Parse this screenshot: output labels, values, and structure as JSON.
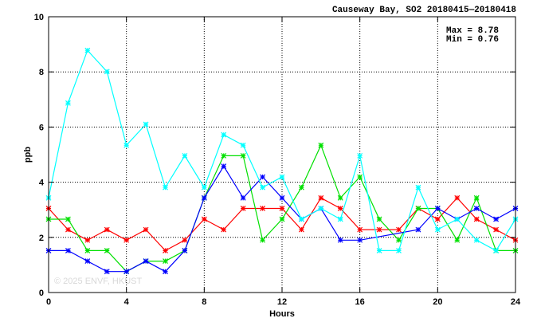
{
  "chart_data": {
    "type": "line",
    "title": "Causeway Bay, SO2 20180415—20180418",
    "xlabel": "Hours",
    "ylabel": "ppb",
    "xlim": [
      0,
      24
    ],
    "ylim": [
      0,
      10
    ],
    "x_ticks": [
      0,
      4,
      8,
      12,
      16,
      20,
      24
    ],
    "y_ticks": [
      0,
      2,
      4,
      6,
      8,
      10
    ],
    "x_tick_labels": [
      "0",
      "4",
      "8",
      "12",
      "16",
      "20",
      "24"
    ],
    "y_tick_labels": [
      "0",
      "2",
      "4",
      "6",
      "8",
      "10"
    ],
    "grid": true,
    "stats": {
      "max": "Max = 8.78",
      "min": "Min = 0.76"
    },
    "watermark": "© 2025  ENVF, HKUST",
    "x": [
      0,
      1,
      2,
      3,
      4,
      5,
      6,
      7,
      8,
      9,
      10,
      11,
      12,
      13,
      14,
      15,
      16,
      17,
      18,
      19,
      20,
      21,
      22,
      23,
      24
    ],
    "series": [
      {
        "color": "#ff0000",
        "values": [
          3.05,
          2.28,
          1.9,
          2.28,
          1.9,
          2.28,
          1.52,
          1.9,
          2.66,
          2.28,
          3.05,
          3.05,
          3.05,
          2.28,
          3.43,
          3.05,
          2.28,
          2.28,
          2.28,
          3.05,
          2.66,
          3.43,
          2.66,
          2.28,
          1.9
        ]
      },
      {
        "color": "#00e000",
        "values": [
          2.66,
          2.66,
          1.52,
          1.52,
          0.76,
          1.14,
          1.14,
          1.52,
          3.43,
          4.96,
          4.96,
          1.9,
          2.66,
          3.81,
          5.34,
          3.43,
          4.19,
          2.66,
          1.9,
          3.05,
          3.05,
          1.9,
          3.43,
          1.52,
          1.52
        ]
      },
      {
        "color": "#0000ff",
        "values": [
          1.52,
          1.52,
          1.14,
          0.76,
          0.76,
          1.14,
          0.76,
          1.52,
          3.43,
          4.58,
          3.43,
          4.19,
          3.43,
          2.66,
          3.05,
          1.9,
          1.9,
          null,
          null,
          2.28,
          3.05,
          2.66,
          3.05,
          2.66,
          3.05
        ]
      },
      {
        "color": "#00ffff",
        "values": [
          3.43,
          6.87,
          8.78,
          8.01,
          5.34,
          6.1,
          3.81,
          4.96,
          3.81,
          5.72,
          5.34,
          3.81,
          4.19,
          2.66,
          3.05,
          2.66,
          4.96,
          1.52,
          1.52,
          3.81,
          2.28,
          2.66,
          1.9,
          1.52,
          2.66
        ]
      }
    ]
  }
}
